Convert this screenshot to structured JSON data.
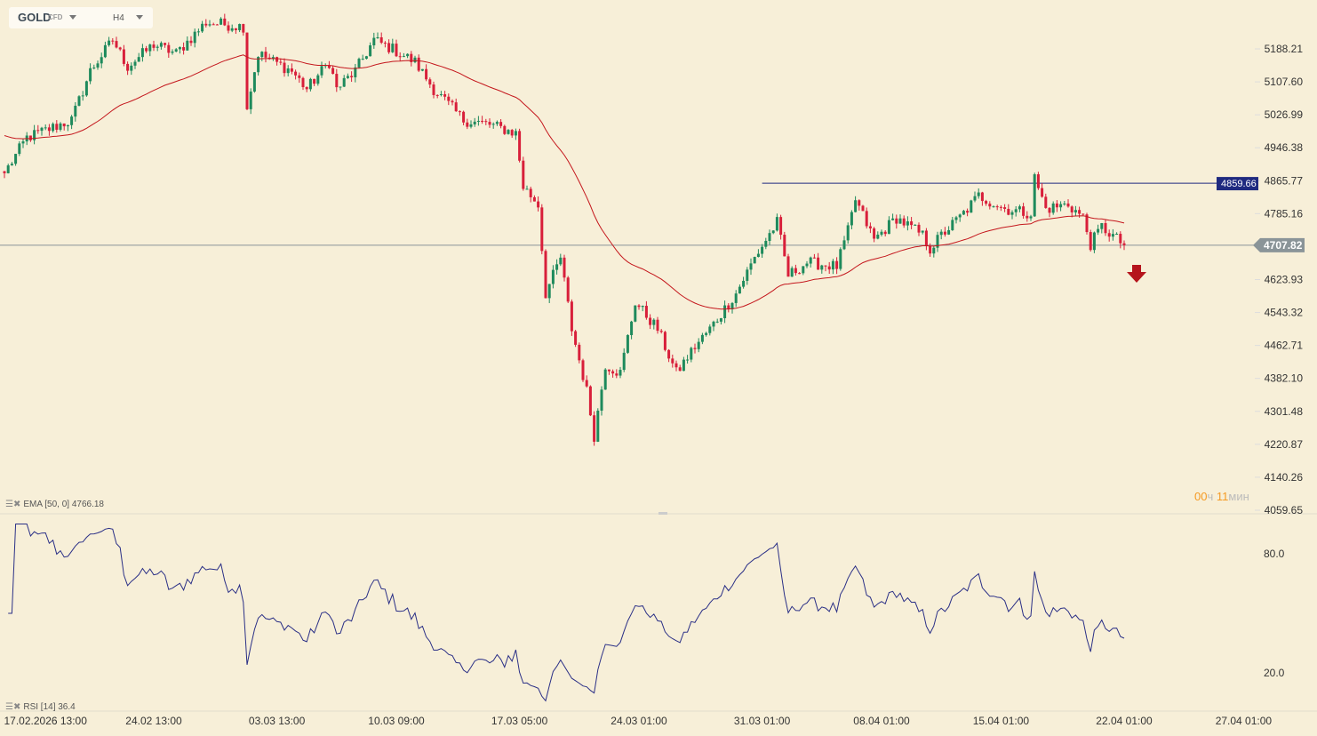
{
  "header": {
    "symbol": "GOLD",
    "type": "CFD",
    "timeframe": "H4"
  },
  "indicators": {
    "ema_label": "EMA [50, 0] 4766.18",
    "rsi_label": "RSI [14] 36.4"
  },
  "timer": {
    "hours": "00",
    "h_unit": "ч",
    "minutes": "11",
    "m_unit": "мин"
  },
  "colors": {
    "up": "#1e8a5c",
    "down": "#d81f3a",
    "ema": "#c4161c",
    "rsi": "#2a2f86",
    "hline_blue": "#1f2a80",
    "hline_gray": "#8a9498",
    "bg": "#f7efd8"
  },
  "chart_data": {
    "type": "candlestick",
    "title": "GOLD CFD H4",
    "ylim": [
      4059.65,
      5188.21
    ],
    "y_ticks": [
      "5188.21",
      "5107.60",
      "5026.99",
      "4946.38",
      "4865.77",
      "4785.16",
      "4707.82",
      "4623.93",
      "4543.32",
      "4462.71",
      "4382.10",
      "4301.48",
      "4220.87",
      "4140.26",
      "4059.65"
    ],
    "x_ticks": [
      {
        "bar": 11,
        "label": "17.02.2026 13:00"
      },
      {
        "bar": 40,
        "label": "24.02 13:00"
      },
      {
        "bar": 73,
        "label": "03.03 13:00"
      },
      {
        "bar": 105,
        "label": "10.03 09:00"
      },
      {
        "bar": 138,
        "label": "17.03 05:00"
      },
      {
        "bar": 170,
        "label": "24.03 01:00"
      },
      {
        "bar": 203,
        "label": "31.03 01:00"
      },
      {
        "bar": 235,
        "label": "08.04 01:00"
      },
      {
        "bar": 267,
        "label": "15.04 01:00"
      },
      {
        "bar": 300,
        "label": "22.04 01:00"
      },
      {
        "bar": 332,
        "label": "27.04 01:00"
      }
    ],
    "close_keypoints": [
      [
        0,
        4884
      ],
      [
        6,
        4971
      ],
      [
        18,
        5014
      ],
      [
        23,
        5134
      ],
      [
        29,
        5210
      ],
      [
        33,
        5145
      ],
      [
        40,
        5199
      ],
      [
        46,
        5177
      ],
      [
        54,
        5253
      ],
      [
        64,
        5243
      ],
      [
        65,
        5047
      ],
      [
        68,
        5177
      ],
      [
        77,
        5134
      ],
      [
        81,
        5090
      ],
      [
        87,
        5156
      ],
      [
        89,
        5090
      ],
      [
        94,
        5134
      ],
      [
        99,
        5210
      ],
      [
        104,
        5188
      ],
      [
        110,
        5156
      ],
      [
        115,
        5090
      ],
      [
        123,
        5014
      ],
      [
        130,
        5003
      ],
      [
        137,
        4982
      ],
      [
        139,
        4851
      ],
      [
        143,
        4808
      ],
      [
        145,
        4590
      ],
      [
        149,
        4677
      ],
      [
        152,
        4503
      ],
      [
        156,
        4351
      ],
      [
        158,
        4242
      ],
      [
        161,
        4416
      ],
      [
        165,
        4395
      ],
      [
        169,
        4569
      ],
      [
        175,
        4503
      ],
      [
        180,
        4395
      ],
      [
        185,
        4460
      ],
      [
        189,
        4503
      ],
      [
        196,
        4590
      ],
      [
        201,
        4677
      ],
      [
        207,
        4764
      ],
      [
        210,
        4634
      ],
      [
        215,
        4666
      ],
      [
        223,
        4656
      ],
      [
        226,
        4742
      ],
      [
        228,
        4819
      ],
      [
        233,
        4721
      ],
      [
        239,
        4775
      ],
      [
        246,
        4732
      ],
      [
        248,
        4699
      ],
      [
        251,
        4732
      ],
      [
        257,
        4786
      ],
      [
        261,
        4829
      ],
      [
        268,
        4797
      ],
      [
        275,
        4786
      ],
      [
        276,
        4873
      ],
      [
        279,
        4797
      ],
      [
        285,
        4808
      ],
      [
        289,
        4775
      ],
      [
        291,
        4710
      ],
      [
        294,
        4753
      ],
      [
        300,
        4708
      ]
    ],
    "ema_period": 50,
    "rsi_period": 14,
    "rsi_ticks": [
      "80.0",
      "20.0"
    ],
    "levels": [
      {
        "price": 4859.66,
        "label": "4859.66",
        "from_bar": 203
      },
      {
        "price": 4707.82,
        "label": "4707.82"
      }
    ],
    "signal": "sell-arrow"
  }
}
